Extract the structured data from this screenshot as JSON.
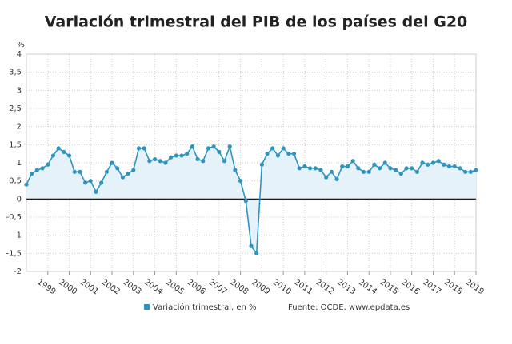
{
  "chart_data": {
    "type": "line",
    "title": "Variación trimestral del PIB de los países del G20",
    "y_label": "%",
    "source": "Fuente: OCDE, www.epdata.es",
    "x": [
      1998,
      1998.25,
      1998.5,
      1998.75,
      1999,
      1999.25,
      1999.5,
      1999.75,
      2000,
      2000.25,
      2000.5,
      2000.75,
      2001,
      2001.25,
      2001.5,
      2001.75,
      2002,
      2002.25,
      2002.5,
      2002.75,
      2003,
      2003.25,
      2003.5,
      2003.75,
      2004,
      2004.25,
      2004.5,
      2004.75,
      2005,
      2005.25,
      2005.5,
      2005.75,
      2006,
      2006.25,
      2006.5,
      2006.75,
      2007,
      2007.25,
      2007.5,
      2007.75,
      2008,
      2008.25,
      2008.5,
      2008.75,
      2009,
      2009.25,
      2009.5,
      2009.75,
      2010,
      2010.25,
      2010.5,
      2010.75,
      2011,
      2011.25,
      2011.5,
      2011.75,
      2012,
      2012.25,
      2012.5,
      2012.75,
      2013,
      2013.25,
      2013.5,
      2013.75,
      2014,
      2014.25,
      2014.5,
      2014.75,
      2015,
      2015.25,
      2015.5,
      2015.75,
      2016,
      2016.25,
      2016.5,
      2016.75,
      2017,
      2017.25,
      2017.5,
      2017.75,
      2018,
      2018.25,
      2018.5,
      2018.75,
      2019
    ],
    "series": [
      {
        "name": "Variación trimestral, en %",
        "color": "#2e95c0",
        "values": [
          0.4,
          0.7,
          0.8,
          0.85,
          0.95,
          1.2,
          1.4,
          1.3,
          1.2,
          0.75,
          0.75,
          0.45,
          0.5,
          0.2,
          0.45,
          0.75,
          1.0,
          0.85,
          0.6,
          0.7,
          0.8,
          1.4,
          1.4,
          1.05,
          1.1,
          1.05,
          1.0,
          1.15,
          1.2,
          1.2,
          1.25,
          1.45,
          1.1,
          1.05,
          1.4,
          1.45,
          1.3,
          1.05,
          1.45,
          0.8,
          0.5,
          -0.05,
          -1.3,
          -1.5,
          0.95,
          1.25,
          1.4,
          1.2,
          1.4,
          1.25,
          1.25,
          0.85,
          0.9,
          0.85,
          0.85,
          0.8,
          0.6,
          0.75,
          0.55,
          0.9,
          0.9,
          1.05,
          0.85,
          0.75,
          0.75,
          0.95,
          0.85,
          1.0,
          0.85,
          0.8,
          0.7,
          0.85,
          0.85,
          0.75,
          1.0,
          0.95,
          1.0,
          1.05,
          0.95,
          0.9,
          0.9,
          0.85,
          0.75,
          0.75,
          0.8
        ]
      }
    ],
    "xlim": [
      1998,
      2019
    ],
    "xticks": [
      1999,
      2000,
      2001,
      2002,
      2003,
      2004,
      2005,
      2006,
      2007,
      2008,
      2009,
      2010,
      2011,
      2012,
      2013,
      2014,
      2015,
      2016,
      2017,
      2018,
      2019
    ],
    "ylim": [
      -2,
      4
    ],
    "yticks": [
      -2,
      {
        "value": -1.5,
        "label": "-1,5"
      },
      -1,
      {
        "value": -0.5,
        "label": "-0,5"
      },
      0,
      {
        "value": 0.5,
        "label": "0,5"
      },
      1,
      {
        "value": 1.5,
        "label": "1,5"
      },
      2,
      {
        "value": 2.5,
        "label": "2,5"
      },
      3,
      {
        "value": 3.5,
        "label": "3,5"
      },
      4
    ],
    "grid": true,
    "area_fill": "#e6f2f9"
  }
}
